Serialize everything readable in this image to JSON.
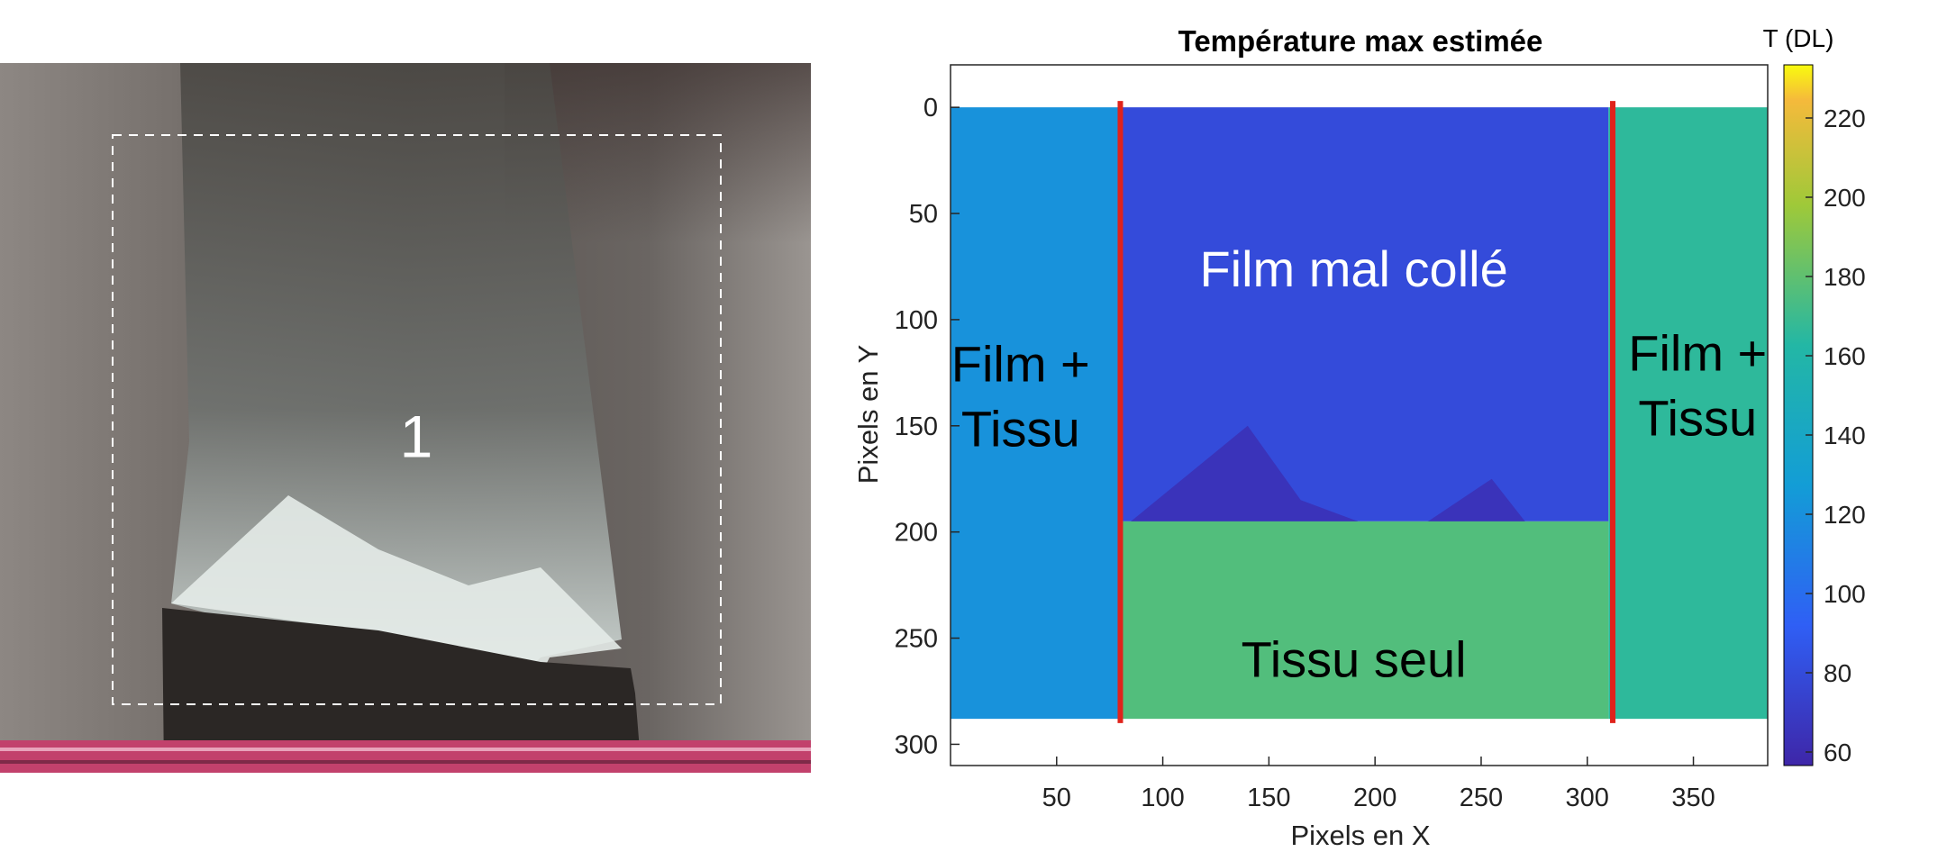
{
  "photo": {
    "region_label": "1",
    "colors": {
      "fabric": "#8c8682",
      "film": "#d9e3e0",
      "dark_fabric": "#2a2624",
      "stripe": "#c2416c",
      "dashed_box": "#ffffff"
    }
  },
  "chart_data": {
    "type": "heatmap",
    "title": "Température max estimée",
    "xlabel": "Pixels en X",
    "ylabel": "Pixels en Y",
    "xlim": [
      0,
      385
    ],
    "ylim": [
      310,
      -20
    ],
    "x_ticks": [
      50,
      100,
      150,
      200,
      250,
      300,
      350
    ],
    "y_ticks": [
      0,
      50,
      100,
      150,
      200,
      250,
      300
    ],
    "image_extent": {
      "x": [
        0,
        385
      ],
      "y": [
        0,
        288
      ]
    },
    "colorbar": {
      "label": "T (DL)",
      "range": [
        60,
        230
      ],
      "ticks": [
        60,
        80,
        100,
        120,
        140,
        160,
        180,
        200,
        220
      ],
      "colormap": "parula"
    },
    "regions": [
      {
        "name": "film_tissu_left",
        "x": [
          0,
          80
        ],
        "y": [
          0,
          288
        ],
        "value": 122
      },
      {
        "name": "film_mal_colle",
        "x": [
          80,
          310
        ],
        "y": [
          0,
          195
        ],
        "value": 82
      },
      {
        "name": "dark_lobe",
        "value": 68,
        "polygon": [
          [
            85,
            195
          ],
          [
            140,
            150
          ],
          [
            165,
            185
          ],
          [
            200,
            198
          ],
          [
            225,
            195
          ],
          [
            255,
            175
          ],
          [
            302,
            235
          ],
          [
            258,
            230
          ],
          [
            245,
            220
          ],
          [
            85,
            200
          ]
        ]
      },
      {
        "name": "tissu_seul",
        "x": [
          80,
          310
        ],
        "y": [
          195,
          288
        ],
        "value": 175
      },
      {
        "name": "film_tissu_right",
        "x": [
          310,
          385
        ],
        "y": [
          0,
          288
        ],
        "value": 165
      }
    ],
    "red_lines_x": [
      80,
      312
    ],
    "annotations": [
      {
        "text": "Film mal collé",
        "x": 190,
        "y": 78
      },
      {
        "text": "Film +\nTissu",
        "x": 33,
        "y": 138
      },
      {
        "text": "Film +\nTissu",
        "x": 352,
        "y": 133
      },
      {
        "text": "Tissu seul",
        "x": 190,
        "y": 262
      }
    ]
  }
}
